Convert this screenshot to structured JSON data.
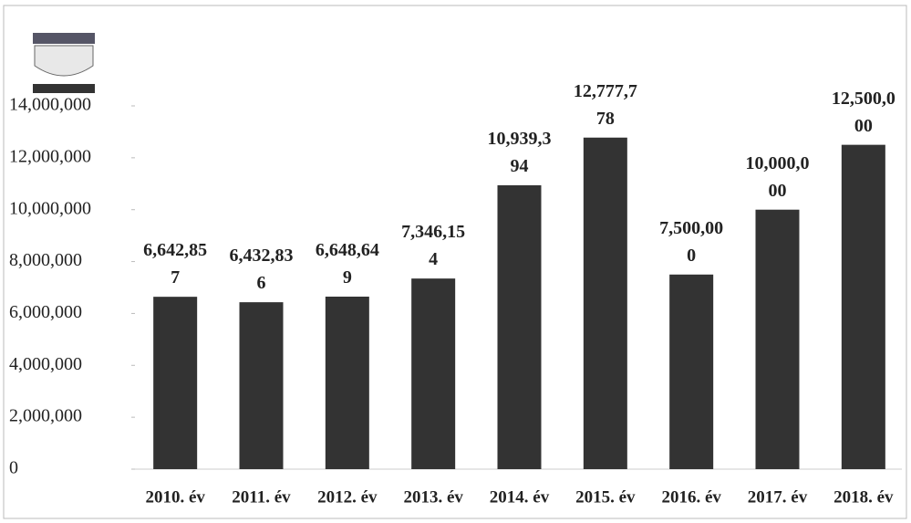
{
  "chart_data": {
    "type": "bar",
    "categories": [
      "2010. év",
      "2011. év",
      "2012. év",
      "2013. év",
      "2014. év",
      "2015. év",
      "2016. év",
      "2017. év",
      "2018. év"
    ],
    "values": [
      6642857,
      6432836,
      6648649,
      7346154,
      10939394,
      12777778,
      7500000,
      10000000,
      12500000
    ],
    "value_labels": [
      "6,642,857",
      "6,432,836",
      "6,648,649",
      "7,346,154",
      "10,939,394",
      "12,777,778",
      "7,500,000",
      "10,000,000",
      "12,500,000"
    ],
    "color": "#333333",
    "ylim": [
      0,
      14000000
    ],
    "yticks": [
      0,
      {
        "value": 2000000,
        "label": "2,000,000"
      },
      {
        "value": 4000000,
        "label": "4,000,000"
      },
      {
        "value": 6000000,
        "label": "6,000,000"
      },
      {
        "value": 8000000,
        "label": "8,000,000"
      },
      {
        "value": 10000000,
        "label": "10,000,000"
      },
      {
        "value": 12000000,
        "label": "12,000,000"
      },
      {
        "value": 14000000,
        "label": "14,000,000"
      }
    ],
    "grid": false
  }
}
